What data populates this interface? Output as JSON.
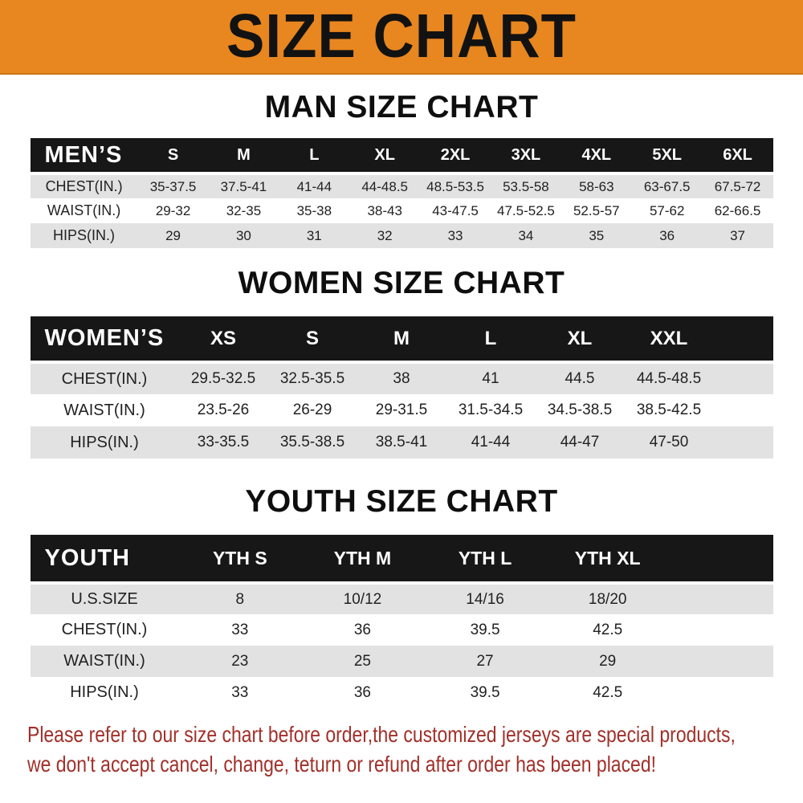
{
  "banner": {
    "title": "SIZE CHART"
  },
  "colors": {
    "banner_bg": "#E8861F",
    "header_bar": "#171717",
    "header_text": "#FFFFFF",
    "stripe_row": "#E2E2E2",
    "title_text": "#0E0E0E",
    "footer_text": "#A1302A"
  },
  "sections": [
    {
      "title": "MAN SIZE CHART",
      "header_label": "MEN’S",
      "columns": [
        "S",
        "M",
        "L",
        "XL",
        "2XL",
        "3XL",
        "4XL",
        "5XL",
        "6XL"
      ],
      "rows": [
        {
          "label": "CHEST(IN.)",
          "values": [
            "35-37.5",
            "37.5-41",
            "41-44",
            "44-48.5",
            "48.5-53.5",
            "53.5-58",
            "58-63",
            "63-67.5",
            "67.5-72"
          ]
        },
        {
          "label": "WAIST(IN.)",
          "values": [
            "29-32",
            "32-35",
            "35-38",
            "38-43",
            "43-47.5",
            "47.5-52.5",
            "52.5-57",
            "57-62",
            "62-66.5"
          ]
        },
        {
          "label": "HIPS(IN.)",
          "values": [
            "29",
            "30",
            "31",
            "32",
            "33",
            "34",
            "35",
            "36",
            "37"
          ]
        }
      ]
    },
    {
      "title": "WOMEN SIZE CHART",
      "header_label": "WOMEN’S",
      "columns": [
        "XS",
        "S",
        "M",
        "L",
        "XL",
        "XXL"
      ],
      "rows": [
        {
          "label": "CHEST(IN.)",
          "values": [
            "29.5-32.5",
            "32.5-35.5",
            "38",
            "41",
            "44.5",
            "44.5-48.5"
          ]
        },
        {
          "label": "WAIST(IN.)",
          "values": [
            "23.5-26",
            "26-29",
            "29-31.5",
            "31.5-34.5",
            "34.5-38.5",
            "38.5-42.5"
          ]
        },
        {
          "label": "HIPS(IN.)",
          "values": [
            "33-35.5",
            "35.5-38.5",
            "38.5-41",
            "41-44",
            "44-47",
            "47-50"
          ]
        }
      ]
    },
    {
      "title": "YOUTH SIZE CHART",
      "header_label": "YOUTH",
      "columns": [
        "YTH S",
        "YTH M",
        "YTH L",
        "YTH XL"
      ],
      "rows": [
        {
          "label": "U.S.SIZE",
          "values": [
            "8",
            "10/12",
            "14/16",
            "18/20"
          ]
        },
        {
          "label": "CHEST(IN.)",
          "values": [
            "33",
            "36",
            "39.5",
            "42.5"
          ]
        },
        {
          "label": "WAIST(IN.)",
          "values": [
            "23",
            "25",
            "27",
            "29"
          ]
        },
        {
          "label": "HIPS(IN.)",
          "values": [
            "33",
            "36",
            "39.5",
            "42.5"
          ]
        }
      ]
    }
  ],
  "footer": {
    "line1": "Please refer to our size chart before order,the customized jerseys are special products,",
    "line2": "we don't accept cancel, change, teturn or refund after order has been placed!"
  }
}
